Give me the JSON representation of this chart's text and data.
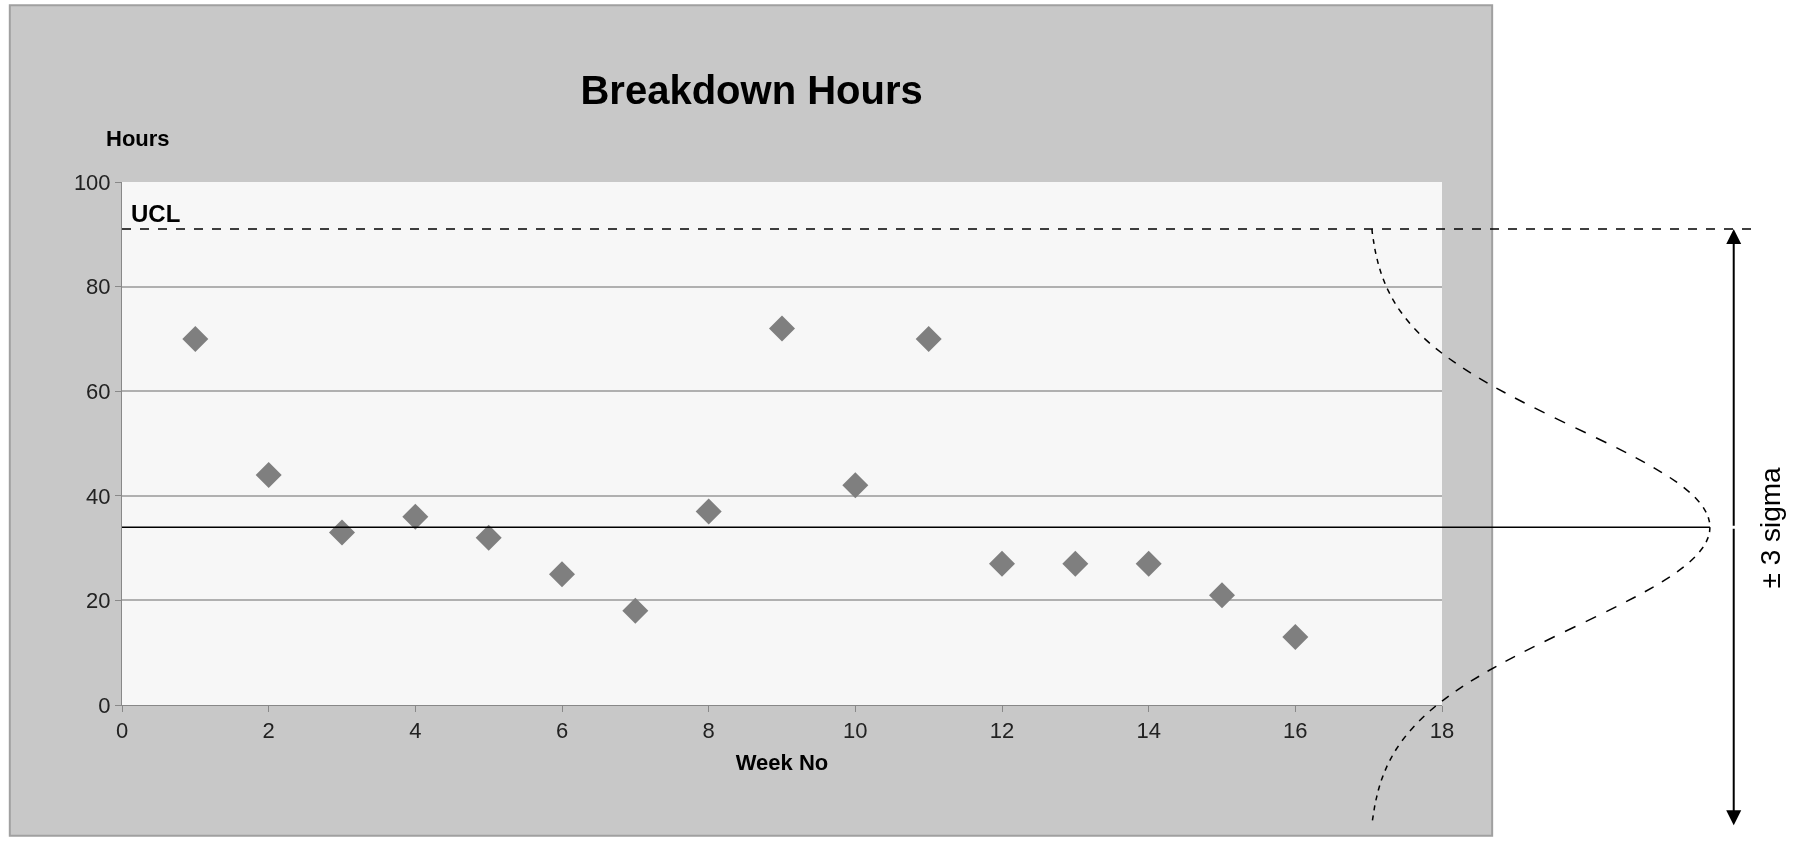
{
  "chart_data": {
    "type": "scatter",
    "title": "Breakdown Hours",
    "xlabel": "Week No",
    "ylabel": "Hours",
    "x": [
      1,
      2,
      3,
      4,
      5,
      6,
      7,
      8,
      9,
      10,
      11,
      12,
      13,
      14,
      15,
      16
    ],
    "series": [
      {
        "color": "#7f7f7f",
        "values": [
          70,
          44,
          33,
          36,
          32,
          25,
          18,
          37,
          72,
          42,
          70,
          27,
          27,
          27,
          21,
          13
        ]
      }
    ],
    "marker": "diamond",
    "xlim": [
      0,
      18
    ],
    "xticks": [
      0,
      2,
      4,
      6,
      8,
      10,
      12,
      14,
      16,
      18
    ],
    "ylim": [
      0,
      100
    ],
    "yticks": [
      0,
      20,
      40,
      60,
      80,
      100
    ],
    "grid": "y",
    "ref_lines": [
      {
        "axis": "y",
        "value": 91,
        "label": "UCL",
        "color": "#000000",
        "line_style": "dashed"
      },
      {
        "axis": "y",
        "value": 34,
        "color": "#000000",
        "line_style": "solid"
      }
    ],
    "annotations": [
      "± 3 sigma"
    ]
  }
}
